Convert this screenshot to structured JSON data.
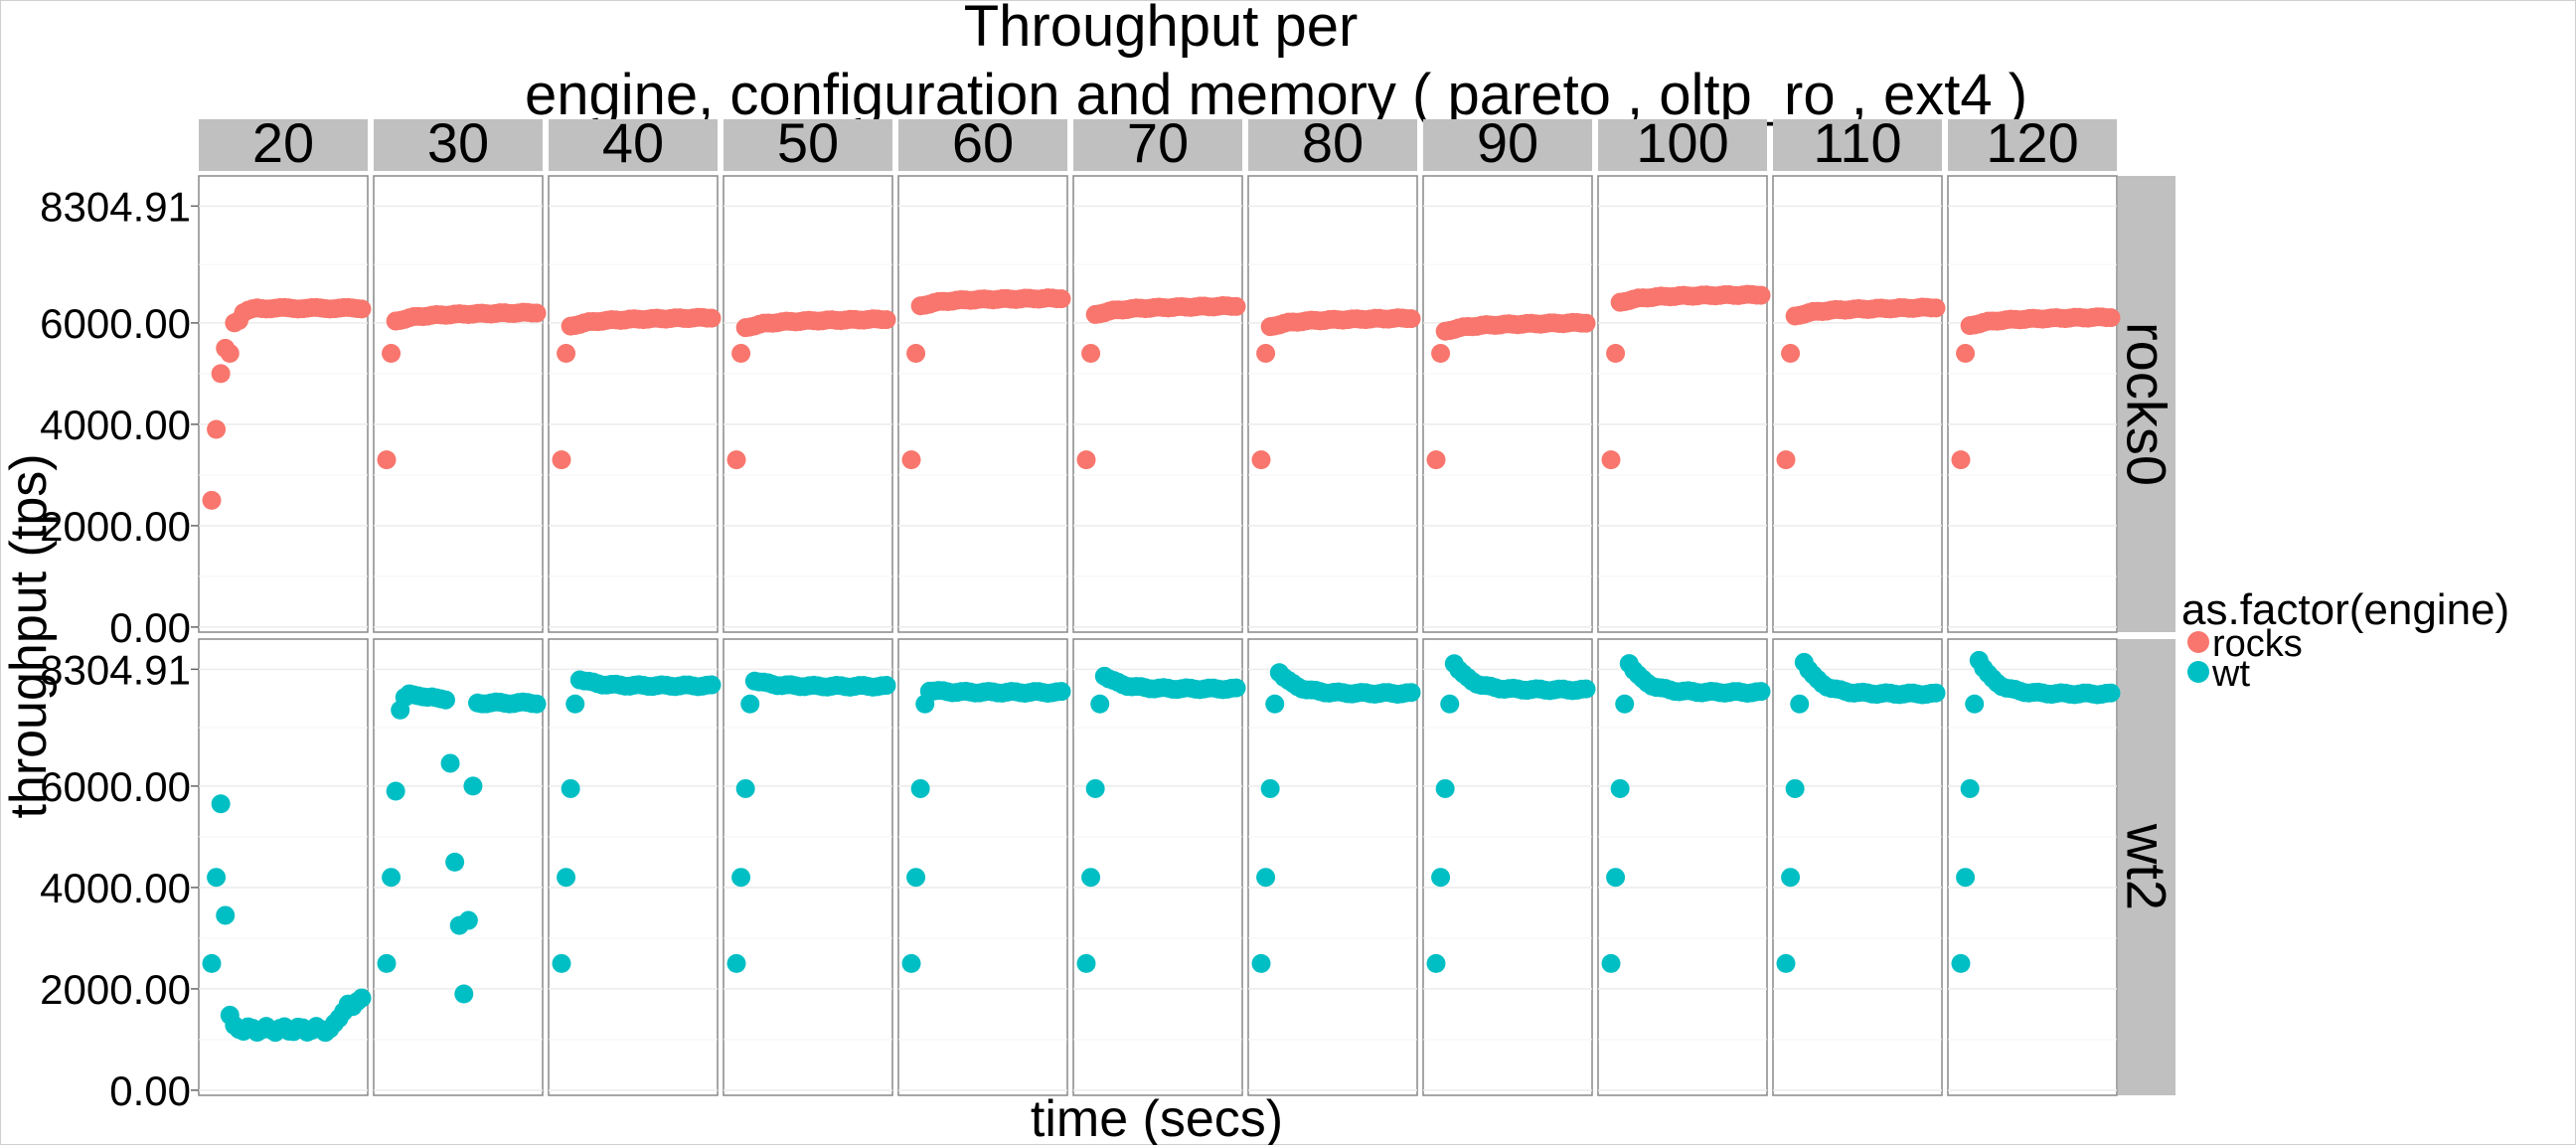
{
  "chart_data": {
    "type": "scatter",
    "title_line1": "Throughput per",
    "title_line2": "engine, configuration and memory ( pareto , oltp_ro , ext4 )",
    "xlabel": "time (secs)",
    "ylabel": "throughput (tps)",
    "facet_columns": [
      "20",
      "30",
      "40",
      "50",
      "60",
      "70",
      "80",
      "90",
      "100",
      "110",
      "120"
    ],
    "facet_rows": [
      "rocks0",
      "wt2"
    ],
    "y_ticks": [
      "0.00",
      "2000.00",
      "4000.00",
      "6000.00",
      "8304.91"
    ],
    "y_tick_values": [
      0,
      2000,
      4000,
      6000,
      8304.91
    ],
    "ylim": [
      -100,
      8900
    ],
    "grid": true,
    "legend": {
      "title": "as.factor(engine)",
      "placement": "right",
      "entries": [
        {
          "label": "rocks",
          "color": "#F8766D"
        },
        {
          "label": "wt",
          "color": "#00BFC4"
        }
      ]
    },
    "series": [
      {
        "name": "rocks",
        "row": "rocks0",
        "color": "#F8766D"
      },
      {
        "name": "wt",
        "row": "wt2",
        "color": "#00BFC4"
      }
    ]
  }
}
